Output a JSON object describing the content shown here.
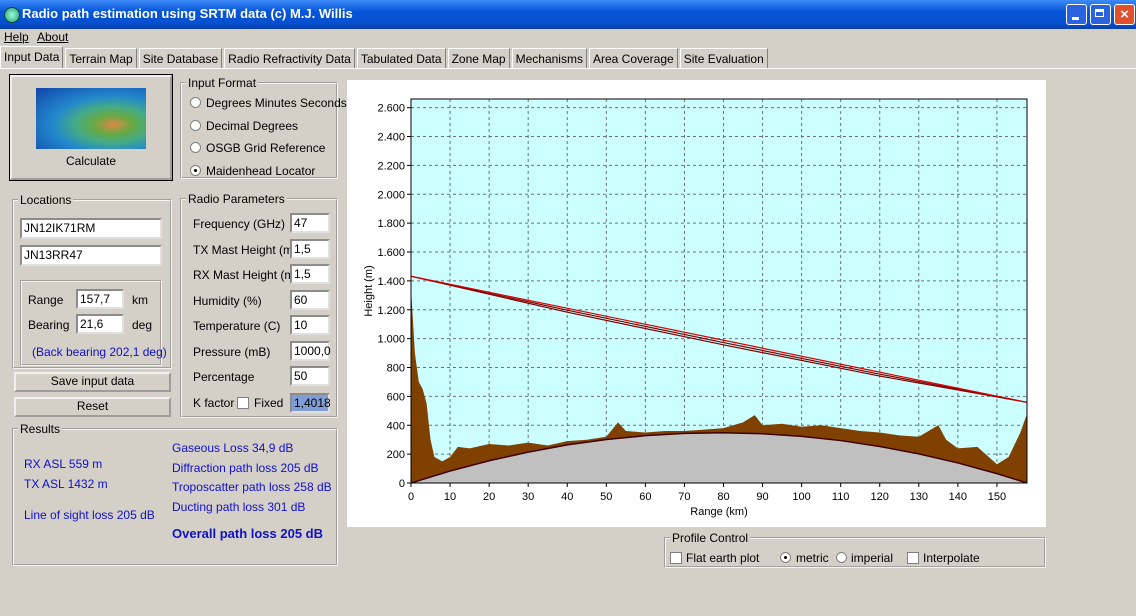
{
  "window": {
    "title": "Radio path estimation using SRTM data (c) M.J. Willis"
  },
  "menu": [
    "Help",
    "About"
  ],
  "tabs": [
    "Input Data",
    "Terrain Map",
    "Site Database",
    "Radio Refractivity Data",
    "Tabulated Data",
    "Zone Map",
    "Mechanisms",
    "Area Coverage",
    "Site Evaluation"
  ],
  "calculate": "Calculate",
  "input_format": {
    "title": "Input Format",
    "options": [
      "Degrees Minutes Seconds",
      "Decimal Degrees",
      "OSGB Grid Reference",
      "Maidenhead Locator"
    ],
    "selected": 3
  },
  "locations": {
    "title": "Locations",
    "site_a": "JN12IK71RM",
    "site_b": "JN13RR47",
    "range_label": "Range",
    "range": "157,7",
    "range_unit": "km",
    "bearing_label": "Bearing",
    "bearing": "21,6",
    "bearing_unit": "deg",
    "back_bearing": "(Back bearing 202,1 deg)"
  },
  "buttons": [
    "Save input data",
    "Reset"
  ],
  "radio_parameters": {
    "title": "Radio Parameters",
    "fields": [
      {
        "label": "Frequency (GHz)",
        "value": "47"
      },
      {
        "label": "TX Mast Height (m)",
        "value": "1,5"
      },
      {
        "label": "RX Mast Height (m)",
        "value": "1,5"
      },
      {
        "label": "Humidity (%)",
        "value": "60"
      },
      {
        "label": "Temperature (C)",
        "value": "10"
      },
      {
        "label": "Pressure (mB)",
        "value": "1000,0"
      },
      {
        "label": "Percentage",
        "value": "50"
      }
    ],
    "k_factor_label": "K factor",
    "fixed_label": "Fixed",
    "k_factor": "1,4018"
  },
  "results": {
    "title": "Results",
    "left": [
      "RX ASL 559 m",
      "TX ASL 1432 m",
      "Line of sight loss 205 dB"
    ],
    "right": [
      "Gaseous Loss 34,9 dB",
      "Diffraction path loss 205 dB",
      "Troposcatter path loss 258 dB",
      "Ducting path loss 301 dB"
    ],
    "overall": "Overall path loss 205 dB"
  },
  "chart_data": {
    "type": "line",
    "xlabel": "Range (km)",
    "ylabel": "Height (m)",
    "xlim": [
      0,
      157.7
    ],
    "ylim": [
      0,
      2660
    ],
    "xticks": [
      0,
      10,
      20,
      30,
      40,
      50,
      60,
      70,
      80,
      90,
      100,
      110,
      120,
      130,
      140,
      150
    ],
    "yticks": [
      0,
      200,
      400,
      600,
      800,
      {
        "value": 1000,
        "label": "1.000"
      },
      {
        "value": 1200,
        "label": "1.200"
      },
      {
        "value": 1400,
        "label": "1.400"
      },
      {
        "value": 1600,
        "label": "1.600"
      },
      {
        "value": 1800,
        "label": "1.800"
      },
      {
        "value": 2000,
        "label": "2.000"
      },
      {
        "value": 2200,
        "label": "2.200"
      },
      {
        "value": 2400,
        "label": "2.400"
      },
      {
        "value": 2600,
        "label": "2.600"
      }
    ],
    "grid": true,
    "background": "#ccffff",
    "series": [
      {
        "kind": "area",
        "color": "#804000",
        "x": [
          0,
          1,
          2,
          3,
          4,
          5,
          6,
          8,
          10,
          12,
          15,
          20,
          25,
          30,
          35,
          40,
          45,
          50,
          53,
          55,
          60,
          65,
          70,
          75,
          80,
          85,
          88,
          90,
          95,
          100,
          105,
          110,
          115,
          120,
          125,
          130,
          135,
          137,
          140,
          145,
          150,
          153,
          156,
          157.7
        ],
        "values": [
          1350,
          900,
          700,
          650,
          550,
          300,
          180,
          150,
          180,
          250,
          240,
          270,
          260,
          280,
          260,
          290,
          300,
          320,
          420,
          360,
          350,
          360,
          360,
          370,
          380,
          420,
          470,
          400,
          410,
          390,
          400,
          380,
          360,
          350,
          330,
          320,
          400,
          300,
          240,
          250,
          130,
          180,
          350,
          480
        ]
      },
      {
        "kind": "area",
        "color": "#c0c0c0",
        "edge": "#400000",
        "x": [
          0,
          10,
          20,
          30,
          40,
          50,
          60,
          70,
          80,
          90,
          100,
          110,
          120,
          130,
          140,
          150,
          157.7
        ],
        "values": [
          0,
          83,
          154,
          214,
          264,
          301,
          328,
          344,
          348,
          341,
          323,
          294,
          253,
          202,
          139,
          65,
          0
        ]
      },
      {
        "kind": "line",
        "color": "#800000",
        "x": [
          0,
          40,
          80,
          120,
          157.7
        ],
        "values": [
          1432,
          1197,
          973,
          754,
          559
        ]
      },
      {
        "kind": "line",
        "color": "#800000",
        "x": [
          0,
          40,
          80,
          120,
          157.7
        ],
        "values": [
          1432,
          1183,
          957,
          741,
          559
        ]
      },
      {
        "kind": "line",
        "color": "#dd0000",
        "x": [
          0,
          157.7
        ],
        "values": [
          1432,
          559
        ]
      }
    ]
  },
  "profile_control": {
    "title": "Profile Control",
    "flat_earth": "Flat earth plot",
    "metric": "metric",
    "imperial": "imperial",
    "interpolate": "Interpolate"
  }
}
